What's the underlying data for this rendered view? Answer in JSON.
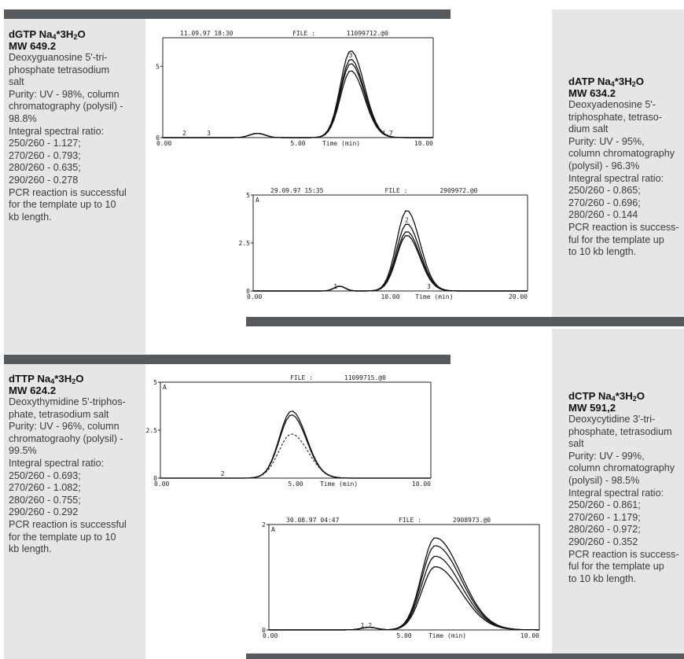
{
  "colors": {
    "bar": "#555a5e",
    "panel": "#e6e6e6",
    "text": "#3a3a3a"
  },
  "compounds": [
    {
      "id": "dgtp",
      "name": "dGTP Na",
      "formula_sub1": "4",
      "formula_mid": "*3H",
      "formula_sub2": "2",
      "formula_end": "O",
      "mw": "MW 649.2",
      "lines": [
        "Deoxyguanosine 5'-tri-",
        "phosphate tetrasodium",
        "salt",
        "Purity: UV - 98%, column",
        "chromatography (polysil) -",
        "98.8%",
        "Integral spectral ratio:",
        "250/260 - 1.127;",
        "270/260 - 0.793;",
        "280/260 - 0.635;",
        "290/260 - 0.278",
        "PCR reaction is successful",
        "for the template up to 10",
        "kb length."
      ]
    },
    {
      "id": "datp",
      "name": "dATP Na",
      "formula_sub1": "4",
      "formula_mid": "*3H",
      "formula_sub2": "2",
      "formula_end": "O",
      "mw": "MW 634.2",
      "lines": [
        "Deoxyadenosine 5'-",
        "triphosphate, tetraso-",
        "dium salt",
        "Purity: UV - 95%,",
        "column chromatography",
        "(polysil) - 96.3%",
        "Integral spectral ratio:",
        "250/260 - 0.865;",
        "270/260 - 0.696;",
        "280/260 - 0.144",
        "PCR reaction is success-",
        "ful for the template up",
        "to 10 kb length."
      ]
    },
    {
      "id": "dttp",
      "name": "dTTP Na",
      "formula_sub1": "4",
      "formula_mid": "*3H",
      "formula_sub2": "2",
      "formula_end": "O",
      "mw": "MW 624.2",
      "lines": [
        "Deoxythymidine 5'-triphos-",
        "phate, tetrasodium salt",
        "Purity: UV - 96%, column",
        "chromatograohy (polysil) -",
        "99.5%",
        "Integral spectral ratio:",
        "250/260 - 0.693;",
        "270/260 - 1.082;",
        "280/260 - 0.755;",
        "290/260 - 0.292",
        "PCR reaction is successful",
        "for the template up to 10",
        "kb length."
      ]
    },
    {
      "id": "dctp",
      "name": "dCTP Na",
      "formula_sub1": "4",
      "formula_mid": "*3H",
      "formula_sub2": "2",
      "formula_end": "O",
      "mw": "MW 591,2",
      "lines": [
        "Deoxycytidine 3'-tri-",
        "phosphate, tetrasodium",
        "salt",
        "Purity: UV - 99%,",
        "column chromatography",
        "(polysil) - 98.5%",
        "Integral spectral ratio:",
        "250/260 - 0.861;",
        "270/260 - 1.179;",
        "280/260 - 0.972;",
        "290/260 - 0.352",
        "PCR reaction is success-",
        "ful for the template up",
        "to 10 kb length."
      ]
    }
  ],
  "chart_data": [
    {
      "type": "line",
      "date": "11.09.97 18:30",
      "file_label": "FILE :",
      "file": "11099712.@0",
      "corner": "",
      "xlim": [
        0,
        10
      ],
      "ylim": [
        0,
        7
      ],
      "x_ticks": [
        "0.00",
        "5.00",
        "10.00"
      ],
      "x_axis_label": "Time (min)",
      "y_ticks": [
        {
          "v": 5,
          "label": "5"
        },
        {
          "v": 0,
          "label": "0"
        }
      ],
      "peak_label": "3",
      "small_labels": [
        {
          "x": 0.8,
          "text": "2"
        },
        {
          "x": 1.7,
          "text": "3"
        },
        {
          "x": 8.3,
          "text": "4.7"
        }
      ],
      "small_bumps": [
        {
          "x": 3.5,
          "h": 0.3
        }
      ],
      "peaks": [
        {
          "center": 6.95,
          "heights": [
            6.1,
            5.5,
            5.2,
            4.7
          ],
          "width_left": 0.38,
          "width_right": 0.5
        }
      ],
      "dashed": false
    },
    {
      "type": "line",
      "date": "29.09.97 15:35",
      "file_label": "FILE :",
      "file": "2909972.@0",
      "corner": "A",
      "xlim": [
        0,
        20
      ],
      "ylim": [
        0,
        5
      ],
      "x_ticks": [
        "0.00",
        "10.00",
        "20.00"
      ],
      "x_axis_label": "Time (min)",
      "y_ticks": [
        {
          "v": 5,
          "label": "5"
        },
        {
          "v": 2.5,
          "label": "2.5"
        },
        {
          "v": 0,
          "label": "0"
        }
      ],
      "peak_label": "2",
      "small_labels": [
        {
          "x": 6.0,
          "text": "1"
        },
        {
          "x": 12.8,
          "text": "3"
        }
      ],
      "small_bumps": [
        {
          "x": 6.3,
          "h": 0.25
        }
      ],
      "peaks": [
        {
          "center": 11.2,
          "heights": [
            4.2,
            3.5,
            3.1,
            2.9
          ],
          "width_left": 0.75,
          "width_right": 0.95
        }
      ],
      "dashed": false
    },
    {
      "type": "line",
      "date": "",
      "file_label": "FILE :",
      "file": "11099715.@0",
      "corner": "A",
      "xlim": [
        0,
        10
      ],
      "ylim": [
        0,
        5
      ],
      "x_ticks": [
        "0.00",
        "5.00",
        "10.00"
      ],
      "x_axis_label": "Time (min)",
      "y_ticks": [
        {
          "v": 5,
          "label": "5"
        },
        {
          "v": 2.5,
          "label": "2.5"
        },
        {
          "v": 0,
          "label": "0"
        }
      ],
      "peak_label": "",
      "small_labels": [
        {
          "x": 2.3,
          "text": "2"
        }
      ],
      "small_bumps": [],
      "peaks": [
        {
          "center": 4.85,
          "heights": [
            3.5,
            3.3
          ],
          "dashed_height": 2.3,
          "width_left": 0.45,
          "width_right": 0.55
        }
      ],
      "dashed": true
    },
    {
      "type": "line",
      "date": "30.08.97 04:47",
      "file_label": "FILE :",
      "file": "2908973.@0",
      "corner": "A",
      "xlim": [
        0,
        10
      ],
      "ylim": [
        0,
        2
      ],
      "x_ticks": [
        "0.00",
        "5.00",
        "10.00"
      ],
      "x_axis_label": "Time (min)",
      "y_ticks": [
        {
          "v": 2,
          "label": "2"
        },
        {
          "v": 0,
          "label": "0"
        }
      ],
      "peak_label": "",
      "small_labels": [
        {
          "x": 3.6,
          "text": "1.2"
        }
      ],
      "small_bumps": [
        {
          "x": 3.7,
          "h": 0.05
        }
      ],
      "peaks": [
        {
          "center": 6.15,
          "heights": [
            1.75,
            1.6,
            1.4,
            1.2
          ],
          "width_left": 0.5,
          "width_right": 0.95
        }
      ],
      "dashed": false
    }
  ]
}
